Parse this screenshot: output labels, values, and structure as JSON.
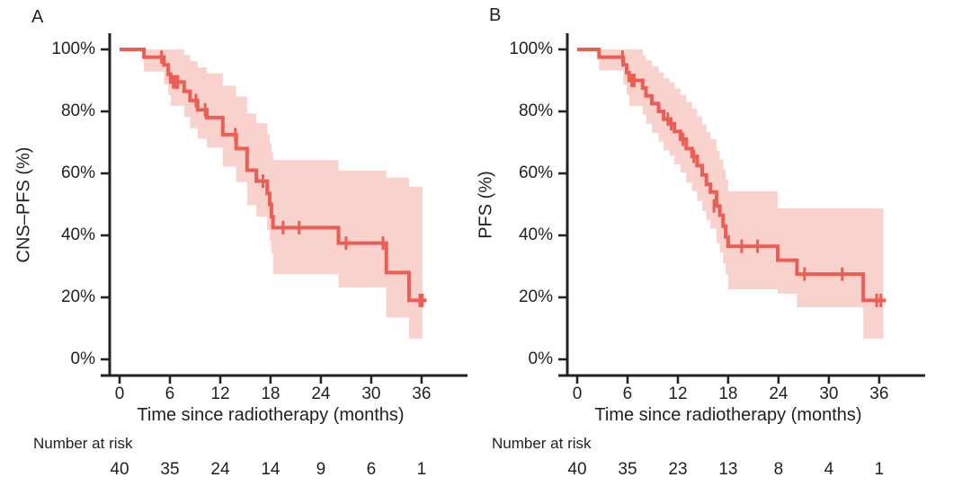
{
  "figure": {
    "background": "#ffffff",
    "text_color": "#231f20",
    "axis_color": "#262223",
    "curve_color": "#eb5e54",
    "band_color": "#f9d1cd"
  },
  "chart_data": [
    {
      "type": "line",
      "subtype": "kaplan-meier-step",
      "panel_label": "A",
      "xlabel": "Time since radiotherapy (months)",
      "ylabel": "CNS–PFS (%)",
      "xlim": [
        0,
        38
      ],
      "ylim": [
        0,
        100
      ],
      "grid": false,
      "legend": "none",
      "x_ticks": [
        0,
        6,
        12,
        18,
        24,
        30,
        36
      ],
      "x_tick_labels": [
        "0",
        "6",
        "12",
        "18",
        "24",
        "30",
        "36"
      ],
      "y_ticks": [
        0,
        20,
        40,
        60,
        80,
        100
      ],
      "y_tick_labels": [
        "0%",
        "20%",
        "40%",
        "60%",
        "80%",
        "100%"
      ],
      "survival_steps": [
        [
          0,
          100
        ],
        [
          2.9,
          97.5
        ],
        [
          5.3,
          95
        ],
        [
          5.8,
          92
        ],
        [
          6.1,
          89.5
        ],
        [
          7.7,
          86.5
        ],
        [
          8.4,
          83.5
        ],
        [
          9.3,
          80.5
        ],
        [
          10.4,
          78
        ],
        [
          12.3,
          72.5
        ],
        [
          13.9,
          68
        ],
        [
          15.2,
          61
        ],
        [
          16.3,
          57.5
        ],
        [
          17.6,
          53.5
        ],
        [
          17.9,
          50
        ],
        [
          18.1,
          46
        ],
        [
          18.3,
          42.5
        ],
        [
          26.1,
          37.5
        ],
        [
          31.8,
          28
        ],
        [
          34.5,
          19
        ]
      ],
      "end_time": 36.6,
      "censor_marks": [
        [
          5.0,
          97.5
        ],
        [
          6.4,
          89.5
        ],
        [
          6.6,
          89.5
        ],
        [
          6.8,
          89.5
        ],
        [
          6.95,
          89.5
        ],
        [
          9.1,
          83.5
        ],
        [
          10.2,
          80.5
        ],
        [
          13.8,
          72.5
        ],
        [
          17.1,
          57.5
        ],
        [
          19.5,
          42.5
        ],
        [
          21.4,
          42.5
        ],
        [
          27.0,
          37.5
        ],
        [
          31.4,
          37.5
        ],
        [
          35.8,
          19
        ],
        [
          36.1,
          19
        ]
      ],
      "ci_band_steps": [
        [
          2.9,
          92.8,
          100
        ],
        [
          5.3,
          88.6,
          100
        ],
        [
          5.8,
          85.3,
          100
        ],
        [
          6.1,
          81.8,
          100
        ],
        [
          7.7,
          78.2,
          98.2
        ],
        [
          8.4,
          74.6,
          96.3
        ],
        [
          9.3,
          71.2,
          94.2
        ],
        [
          10.4,
          68.3,
          92.3
        ],
        [
          12.3,
          62.2,
          88.3
        ],
        [
          13.9,
          57.2,
          84.8
        ],
        [
          15.2,
          49.8,
          79.3
        ],
        [
          16.3,
          46.0,
          76.2
        ],
        [
          17.6,
          41.8,
          72.6
        ],
        [
          17.9,
          38.3,
          69.8
        ],
        [
          18.1,
          34.3,
          66.8
        ],
        [
          18.3,
          27.5,
          64.3
        ],
        [
          26.1,
          23.2,
          60.9
        ],
        [
          31.8,
          13.5,
          58.6
        ],
        [
          34.5,
          6.7,
          55.7
        ]
      ],
      "ci_end_time": 36.1,
      "risk_table": {
        "label": "Number at risk",
        "times": [
          0,
          6,
          12,
          18,
          24,
          30,
          36
        ],
        "values": [
          "40",
          "35",
          "24",
          "14",
          "9",
          "6",
          "1"
        ]
      }
    },
    {
      "type": "line",
      "subtype": "kaplan-meier-step",
      "panel_label": "B",
      "xlabel": "Time since radiotherapy (months)",
      "ylabel": "PFS (%)",
      "xlim": [
        0,
        38
      ],
      "ylim": [
        0,
        100
      ],
      "grid": false,
      "legend": "none",
      "x_ticks": [
        0,
        6,
        12,
        18,
        24,
        30,
        36
      ],
      "x_tick_labels": [
        "0",
        "6",
        "12",
        "18",
        "24",
        "30",
        "36"
      ],
      "y_ticks": [
        0,
        20,
        40,
        60,
        80,
        100
      ],
      "y_tick_labels": [
        "0%",
        "20%",
        "40%",
        "60%",
        "80%",
        "100%"
      ],
      "survival_steps": [
        [
          0,
          100
        ],
        [
          2.6,
          97.5
        ],
        [
          5.5,
          95
        ],
        [
          5.9,
          92.5
        ],
        [
          6.2,
          90
        ],
        [
          7.8,
          87.5
        ],
        [
          8.2,
          85
        ],
        [
          8.9,
          82.5
        ],
        [
          9.7,
          80
        ],
        [
          10.3,
          77.5
        ],
        [
          11.0,
          76
        ],
        [
          11.6,
          73.5
        ],
        [
          12.3,
          71
        ],
        [
          13.0,
          68
        ],
        [
          13.7,
          65.5
        ],
        [
          14.3,
          62.5
        ],
        [
          14.9,
          59.5
        ],
        [
          15.4,
          56.5
        ],
        [
          15.9,
          54
        ],
        [
          16.6,
          49.5
        ],
        [
          17.0,
          46.5
        ],
        [
          17.4,
          43
        ],
        [
          17.7,
          39.5
        ],
        [
          18.0,
          36.5
        ],
        [
          23.9,
          32
        ],
        [
          26.2,
          27.5
        ],
        [
          34.1,
          19
        ]
      ],
      "end_time": 36.8,
      "censor_marks": [
        [
          5.4,
          97.5
        ],
        [
          6.5,
          90
        ],
        [
          6.8,
          90
        ],
        [
          10.8,
          77.5
        ],
        [
          11.2,
          76
        ],
        [
          12.6,
          71
        ],
        [
          13.9,
          65.5
        ],
        [
          16.3,
          49.5
        ],
        [
          19.6,
          36.5
        ],
        [
          21.5,
          36.5
        ],
        [
          27.1,
          27.5
        ],
        [
          31.6,
          27.5
        ],
        [
          35.7,
          19
        ],
        [
          36.2,
          19
        ]
      ],
      "ci_band_steps": [
        [
          2.6,
          93.2,
          100
        ],
        [
          5.5,
          88.6,
          100
        ],
        [
          5.9,
          85.3,
          100
        ],
        [
          6.2,
          81.8,
          100
        ],
        [
          7.8,
          79.0,
          98.1
        ],
        [
          8.2,
          76.0,
          96.5
        ],
        [
          8.9,
          73.0,
          94.5
        ],
        [
          9.7,
          70.2,
          92.6
        ],
        [
          10.3,
          67.4,
          90.7
        ],
        [
          11.0,
          65.7,
          89.4
        ],
        [
          11.6,
          62.9,
          87.4
        ],
        [
          12.3,
          60.2,
          85.3
        ],
        [
          13.0,
          57.0,
          83.0
        ],
        [
          13.7,
          54.3,
          80.9
        ],
        [
          14.3,
          51.1,
          78.4
        ],
        [
          14.9,
          47.9,
          75.8
        ],
        [
          15.4,
          44.8,
          73.3
        ],
        [
          15.9,
          42.2,
          71.1
        ],
        [
          16.6,
          37.6,
          67.2
        ],
        [
          17.0,
          34.5,
          64.5
        ],
        [
          17.4,
          30.9,
          61.3
        ],
        [
          17.7,
          27.4,
          58.1
        ],
        [
          18.0,
          22.6,
          54.3
        ],
        [
          23.9,
          21.2,
          48.7
        ],
        [
          26.2,
          16.8,
          48.7
        ],
        [
          34.1,
          6.7,
          48.7
        ]
      ],
      "ci_end_time": 36.5,
      "risk_table": {
        "label": "Number at risk",
        "times": [
          0,
          6,
          12,
          18,
          24,
          30,
          36
        ],
        "values": [
          "40",
          "35",
          "23",
          "13",
          "8",
          "4",
          "1"
        ]
      }
    }
  ]
}
